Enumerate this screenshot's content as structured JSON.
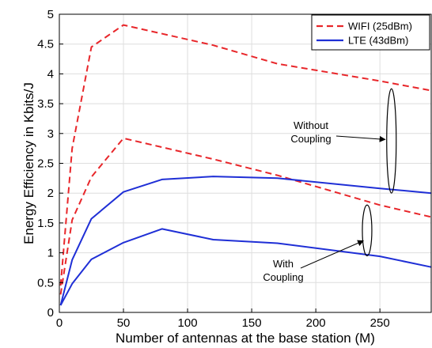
{
  "chart_data": {
    "type": "line",
    "xlabel": "Number of antennas at the base station (M)",
    "ylabel": "Energy Efficiency in Kbits/J",
    "xlim": [
      0,
      290
    ],
    "ylim": [
      0,
      5
    ],
    "xticks": [
      0,
      50,
      100,
      150,
      200,
      250
    ],
    "yticks": [
      0,
      0.5,
      1,
      1.5,
      2,
      2.5,
      3,
      3.5,
      4,
      4.5,
      5
    ],
    "grid": true,
    "legend_position": "top-right",
    "legend": [
      {
        "label": "WIFI (25dBm)",
        "color": "#e8262a",
        "style": "dashed"
      },
      {
        "label": "LTE (43dBm)",
        "color": "#1f2fd6",
        "style": "solid"
      }
    ],
    "series": [
      {
        "legend_index": 0,
        "color": "#e8262a",
        "style": "dashed",
        "x": [
          1,
          10,
          25,
          50,
          120,
          170,
          250,
          290
        ],
        "y": [
          0.45,
          2.75,
          4.45,
          4.82,
          4.48,
          4.17,
          3.88,
          3.72
        ]
      },
      {
        "legend_index": 0,
        "color": "#e8262a",
        "style": "dashed",
        "x": [
          1,
          10,
          25,
          50,
          120,
          170,
          250,
          290
        ],
        "y": [
          0.3,
          1.55,
          2.27,
          2.92,
          2.57,
          2.3,
          1.8,
          1.6
        ]
      },
      {
        "legend_index": 1,
        "color": "#1f2fd6",
        "style": "solid",
        "x": [
          1,
          10,
          25,
          50,
          80,
          120,
          170,
          250,
          290
        ],
        "y": [
          0.12,
          0.88,
          1.57,
          2.02,
          2.23,
          2.28,
          2.25,
          2.08,
          2.0
        ]
      },
      {
        "legend_index": 1,
        "color": "#1f2fd6",
        "style": "solid",
        "x": [
          1,
          10,
          25,
          50,
          80,
          120,
          170,
          250,
          290
        ],
        "y": [
          0.12,
          0.48,
          0.89,
          1.17,
          1.4,
          1.22,
          1.16,
          0.94,
          0.76
        ]
      }
    ],
    "annotations": [
      {
        "lines": [
          "Without",
          "Coupling"
        ],
        "ellipse_x": 259,
        "ellipse_y": [
          2.0,
          3.75
        ],
        "arrow_to": [
          254,
          2.9
        ]
      },
      {
        "lines": [
          "With",
          "Coupling"
        ],
        "ellipse_x": 240,
        "ellipse_y": [
          0.95,
          1.8
        ],
        "arrow_to": [
          237,
          1.2
        ]
      }
    ]
  }
}
